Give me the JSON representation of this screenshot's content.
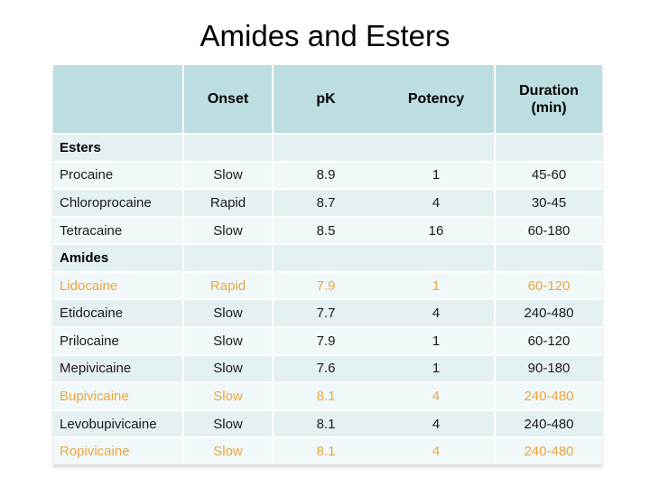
{
  "title": "Amides and Esters",
  "table": {
    "columns": [
      "",
      "Onset",
      "pK",
      "Potency",
      "Duration\n(min)"
    ],
    "rows": [
      {
        "name": "Esters",
        "section": true,
        "onset": "",
        "pk": "",
        "potency": "",
        "duration": ""
      },
      {
        "name": "Procaine",
        "onset": "Slow",
        "pk": "8.9",
        "potency": "1",
        "duration": "45-60"
      },
      {
        "name": "Chloroprocaine",
        "onset": "Rapid",
        "pk": "8.7",
        "potency": "4",
        "duration": "30-45"
      },
      {
        "name": "Tetracaine",
        "onset": "Slow",
        "pk": "8.5",
        "potency": "16",
        "duration": "60-180"
      },
      {
        "name": "Amides",
        "section": true,
        "onset": "",
        "pk": "",
        "potency": "",
        "duration": ""
      },
      {
        "name": "Lidocaine",
        "onset": "Rapid",
        "pk": "7.9",
        "potency": "1",
        "duration": "60-120",
        "highlight": true
      },
      {
        "name": "Etidocaine",
        "onset": "Slow",
        "pk": "7.7",
        "potency": "4",
        "duration": "240-480"
      },
      {
        "name": "Prilocaine",
        "onset": "Slow",
        "pk": "7.9",
        "potency": "1",
        "duration": "60-120"
      },
      {
        "name": "Mepivicaine",
        "onset": "Slow",
        "pk": "7.6",
        "potency": "1",
        "duration": "90-180"
      },
      {
        "name": "Bupivicaine",
        "onset": "Slow",
        "pk": "8.1",
        "potency": "4",
        "duration": "240-480",
        "highlight": true
      },
      {
        "name": "Levobupivicaine",
        "onset": "Slow",
        "pk": "8.1",
        "potency": "4",
        "duration": "240-480"
      },
      {
        "name": "Ropivicaine",
        "onset": "Slow",
        "pk": "8.1",
        "potency": "4",
        "duration": "240-480",
        "highlight": true
      }
    ],
    "colors": {
      "header_bg": "#bddee0",
      "band_dark": "#e5f0f2",
      "band_light": "#f1f8f9",
      "highlight_text": "#eba63e",
      "text": "#1a1a1a"
    }
  }
}
